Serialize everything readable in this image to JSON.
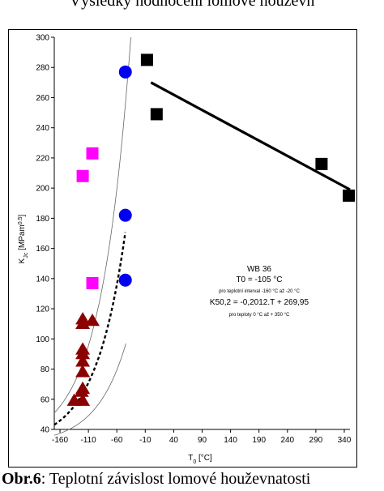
{
  "page": {
    "top_title": "Výsledky hodnocení lomové houževn",
    "caption_bold": "Obr.6",
    "caption_rest": ": Teplotní závislost lomové houževnatosti"
  },
  "chart_data": {
    "type": "scatter",
    "xlabel": "T0 [°C]",
    "ylabel": "KJc [MPam0.5]",
    "xlim": [
      -170,
      350
    ],
    "ylim": [
      40,
      300
    ],
    "xticks": [
      -160,
      -125,
      -90,
      -55,
      -20,
      5,
      40,
      75,
      110,
      140,
      175,
      210,
      245,
      280,
      315,
      350
    ],
    "xtick_labels": [
      "-160",
      "-110",
      "-60",
      "-10",
      "40",
      "90",
      "140",
      "190",
      "240",
      "290",
      "340"
    ],
    "xtick_values": [
      -160,
      -110,
      -60,
      -10,
      40,
      90,
      140,
      190,
      240,
      290,
      340
    ],
    "yticks": [
      40,
      60,
      80,
      100,
      120,
      140,
      160,
      180,
      200,
      220,
      240,
      260,
      280,
      300
    ],
    "grid": false,
    "series": [
      {
        "marker": "triangle",
        "color": "#8b0000",
        "points": [
          [
            -135,
            59
          ],
          [
            -120,
            59
          ],
          [
            -122,
            65
          ],
          [
            -120,
            67
          ],
          [
            -120,
            78
          ],
          [
            -120,
            85
          ],
          [
            -120,
            90
          ],
          [
            -120,
            93
          ],
          [
            -120,
            110
          ],
          [
            -120,
            113
          ],
          [
            -103,
            112
          ]
        ]
      },
      {
        "marker": "square",
        "color": "#ff00ff",
        "points": [
          [
            -120,
            208
          ],
          [
            -103,
            223
          ],
          [
            -103,
            137
          ]
        ]
      },
      {
        "marker": "circle",
        "color": "#0000ee",
        "points": [
          [
            -45,
            277
          ],
          [
            -45,
            182
          ],
          [
            -45,
            139
          ]
        ]
      },
      {
        "marker": "square",
        "color": "#000000",
        "points": [
          [
            -7,
            285
          ],
          [
            10,
            249
          ],
          [
            300,
            216
          ],
          [
            348,
            195
          ]
        ]
      }
    ],
    "curves": {
      "master_mid": {
        "style": "dashed",
        "color": "#000000",
        "x_from": -170,
        "x_to": -45,
        "T0": -105
      },
      "bound_upper": {
        "style": "thin",
        "color": "#666666",
        "x_from": -170,
        "x_to": -32
      },
      "bound_lower": {
        "style": "thin",
        "color": "#666666",
        "x_from": -170,
        "x_to": -44
      },
      "upper_shelf_fit": {
        "style": "solid",
        "color": "#000000",
        "points": [
          [
            0,
            270
          ],
          [
            350,
            199
          ]
        ]
      }
    },
    "annotation": {
      "material": "WB 36",
      "t0": "T0 = -105 °C",
      "t0_range": "pro teplotní interval -160 °C až -20 °C",
      "equation": "K50,2 = -0,2012.T + 269,95",
      "eq_range": "pro teploty 0 °C až + 350 °C"
    }
  }
}
